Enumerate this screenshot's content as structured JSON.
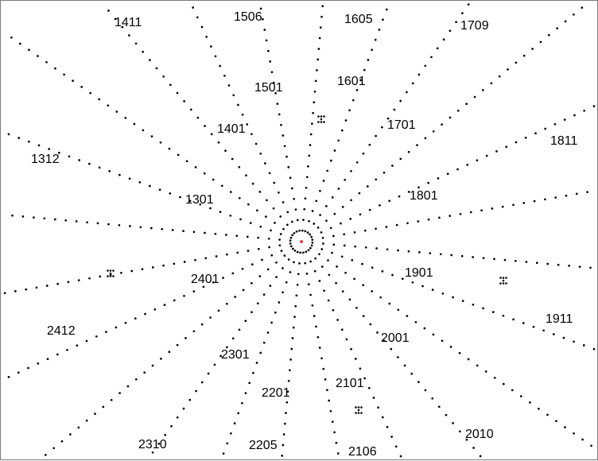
{
  "diagram": {
    "rays": 24,
    "dot_color": "#000000",
    "center_marker_color": "#e8403a",
    "labels": [
      {
        "id": "1411",
        "text": "1411"
      },
      {
        "id": "1506",
        "text": "1506"
      },
      {
        "id": "1605",
        "text": "1605"
      },
      {
        "id": "1709",
        "text": "1709"
      },
      {
        "id": "1501",
        "text": "1501"
      },
      {
        "id": "1601",
        "text": "1601"
      },
      {
        "id": "1401",
        "text": "1401"
      },
      {
        "id": "1701",
        "text": "1701"
      },
      {
        "id": "1811",
        "text": "1811"
      },
      {
        "id": "1312",
        "text": "1312"
      },
      {
        "id": "1301",
        "text": "1301"
      },
      {
        "id": "1801",
        "text": "1801"
      },
      {
        "id": "2401",
        "text": "2401"
      },
      {
        "id": "1901",
        "text": "1901"
      },
      {
        "id": "2412",
        "text": "2412"
      },
      {
        "id": "1911",
        "text": "1911"
      },
      {
        "id": "2001",
        "text": "2001"
      },
      {
        "id": "2301",
        "text": "2301"
      },
      {
        "id": "2201",
        "text": "2201"
      },
      {
        "id": "2101",
        "text": "2101"
      },
      {
        "id": "2010",
        "text": "2010"
      },
      {
        "id": "2310",
        "text": "2310"
      },
      {
        "id": "2205",
        "text": "2205"
      },
      {
        "id": "2106",
        "text": "2106"
      }
    ]
  }
}
